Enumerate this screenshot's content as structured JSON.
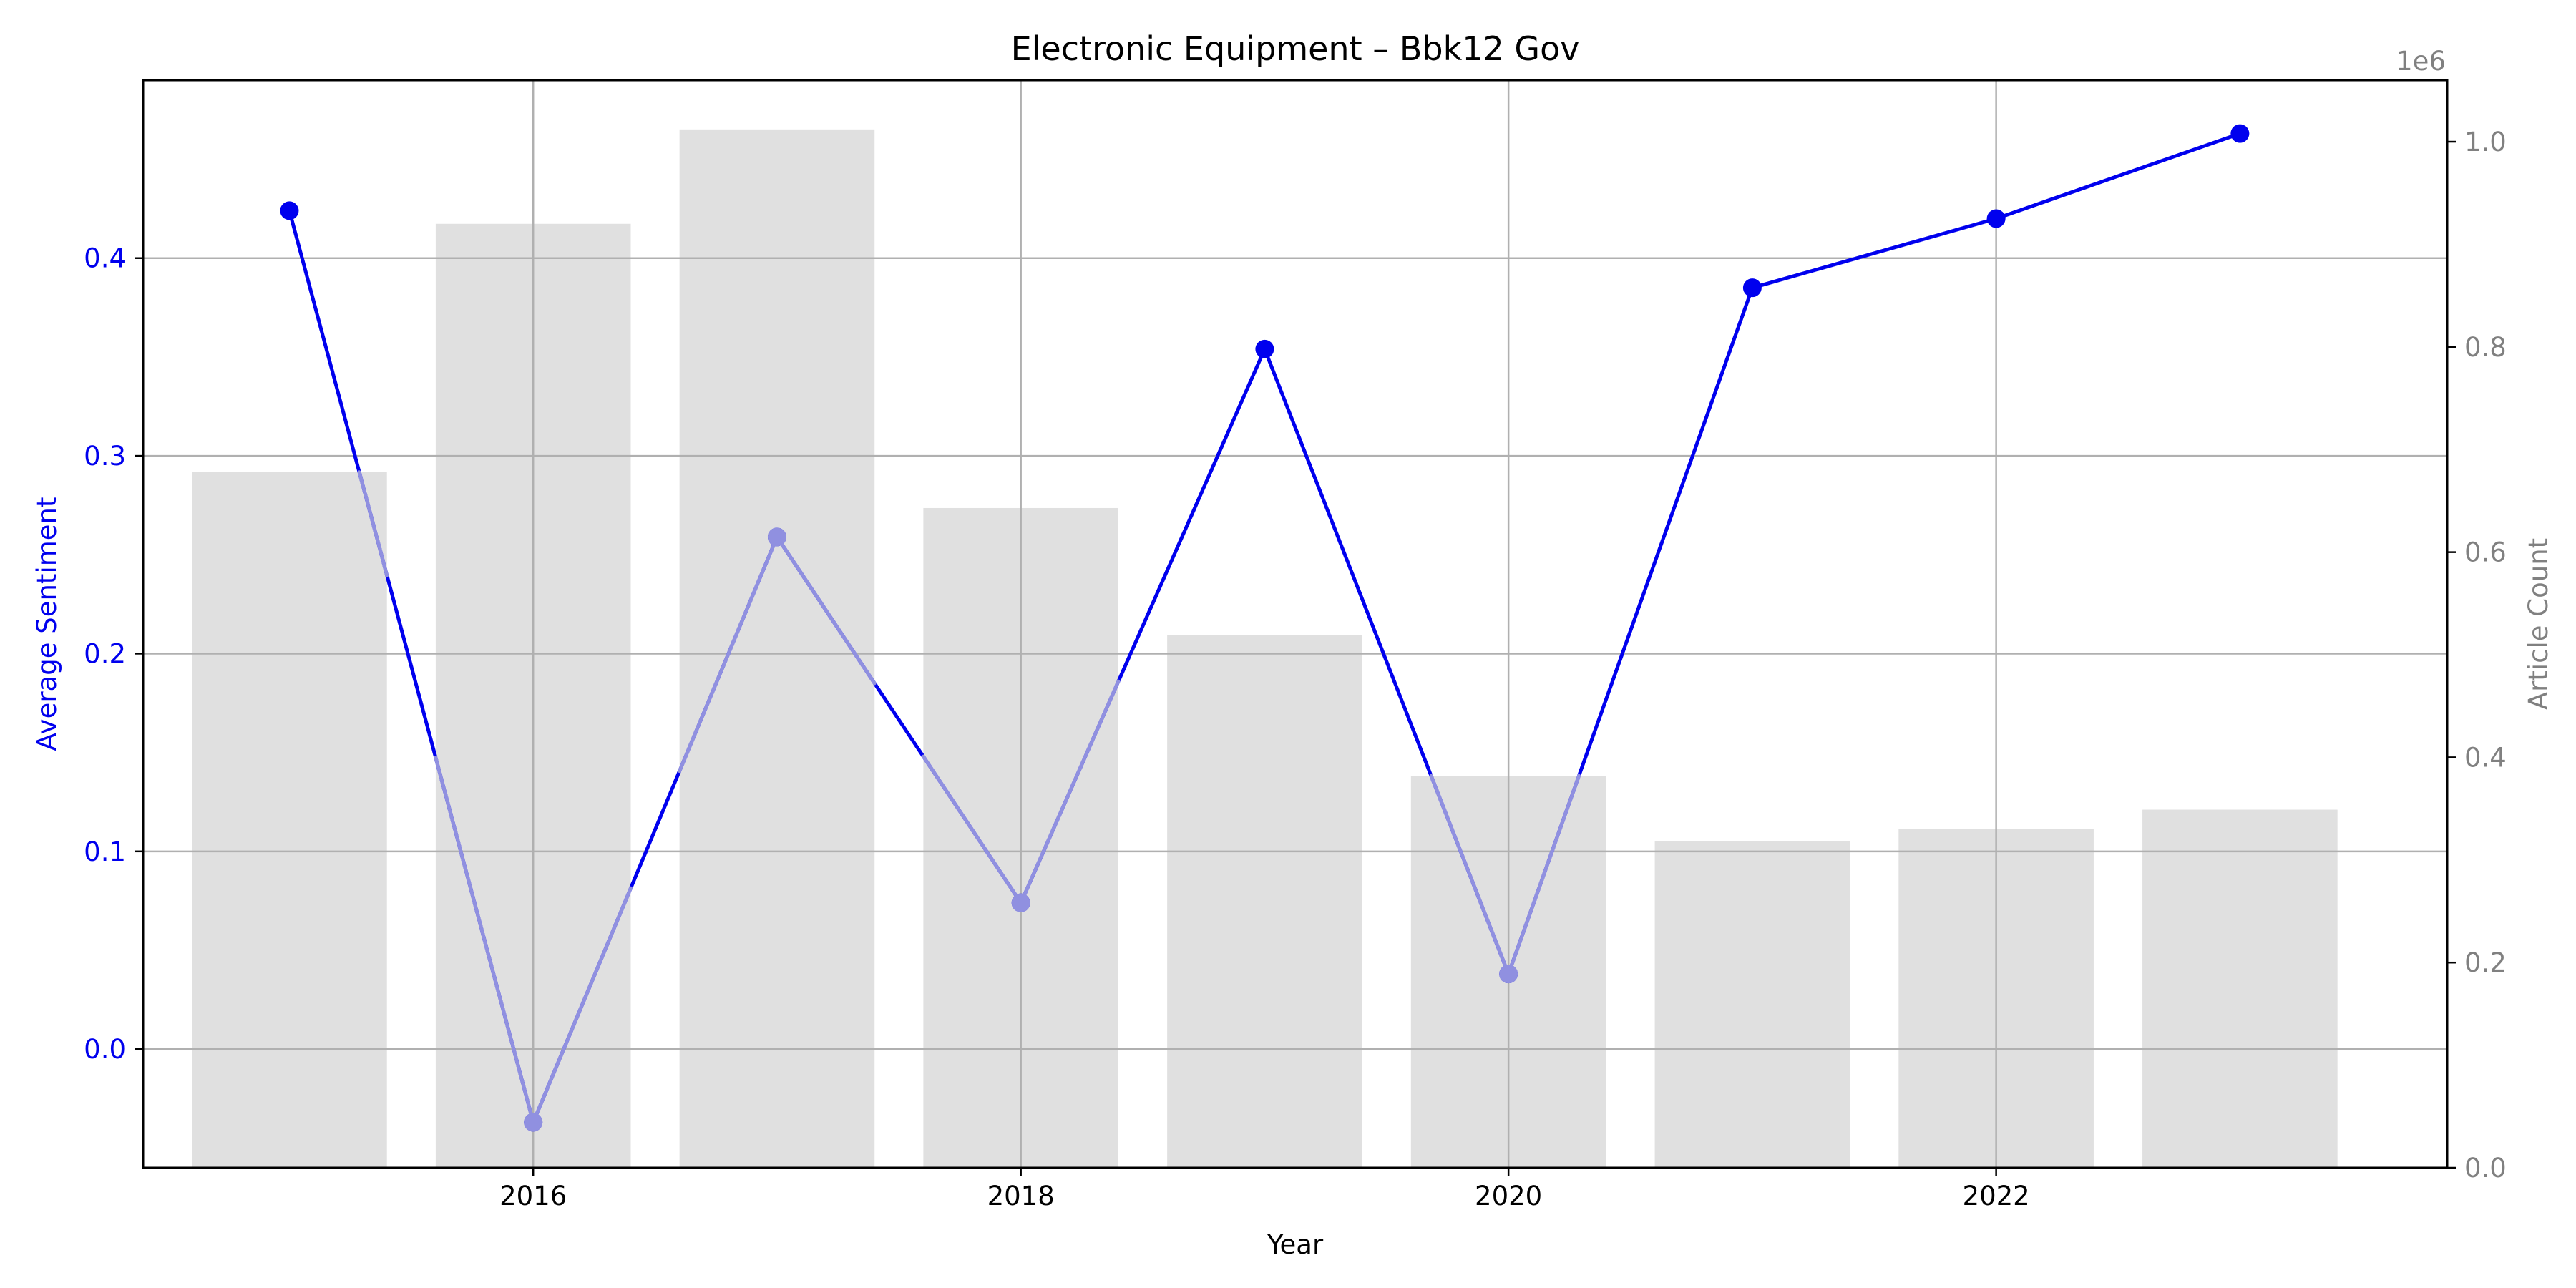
{
  "chart_data": {
    "type": "bar+line",
    "title": "Electronic Equipment – Bbk12 Gov",
    "xlabel": "Year",
    "ylabel_left": "Average Sentiment",
    "ylabel_right": "Article Count",
    "right_offset_label": "1e6",
    "x": [
      2015,
      2016,
      2017,
      2018,
      2019,
      2020,
      2021,
      2022,
      2023
    ],
    "x_ticks": [
      "2016",
      "2018",
      "2020",
      "2022"
    ],
    "xlim": [
      2014.4,
      2023.85
    ],
    "ylim_left": [
      -0.06,
      0.49
    ],
    "ylim_right": [
      0,
      1.06
    ],
    "left_ticks": [
      "0.0",
      "0.1",
      "0.2",
      "0.3",
      "0.4"
    ],
    "right_ticks": [
      "0.0",
      "0.2",
      "0.4",
      "0.6",
      "0.8",
      "1.0"
    ],
    "grid": true,
    "series": [
      {
        "kind": "bar",
        "axis": "right",
        "values": [
          0.678,
          0.92,
          1.012,
          0.643,
          0.519,
          0.382,
          0.318,
          0.33,
          0.349
        ]
      },
      {
        "kind": "line",
        "axis": "left",
        "values": [
          0.424,
          -0.037,
          0.259,
          0.074,
          0.354,
          0.038,
          0.385,
          0.42,
          0.463
        ]
      }
    ],
    "colors": {
      "bar": "#e0e0e0",
      "line": "#0000ee",
      "line_faded": "#9090e0",
      "left_axis": "#0000ee",
      "right_axis": "#808080",
      "grid": "#b0b0b0"
    }
  }
}
